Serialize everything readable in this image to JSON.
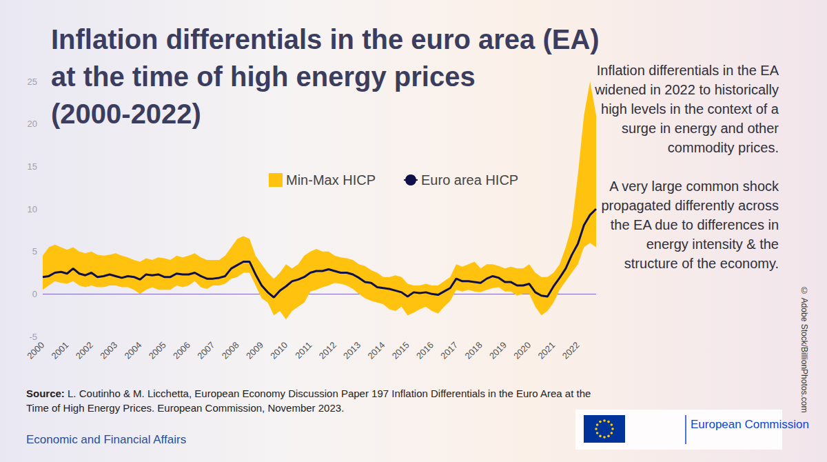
{
  "chart_data": {
    "type": "line",
    "title": "Inflation differentials in the euro area (EA) at the time of high energy prices (2000-2022)",
    "annotations": [
      "Inflation differentials in the EA widened in 2022 to historically high levels in the context of a surge in energy and other commodity prices.",
      "A very large common shock propagated differently across the EA due to differences in energy intensity & the structure of the economy."
    ],
    "source": {
      "label": "Source:",
      "text": "L. Coutinho & M. Licchetta, European Economy Discussion Paper 197 Inflation Differentials in the Euro Area at the Time of High Energy Prices. European Commission, November 2023."
    },
    "footer": "Economic and Financial Affairs",
    "logo": "European Commission",
    "credit": "© Adobe Stock/BillionPhotos.com",
    "legend": "top",
    "categories": [
      "2000",
      null,
      null,
      null,
      "2001",
      null,
      null,
      null,
      "2002",
      null,
      null,
      null,
      "2003",
      null,
      null,
      null,
      "2004",
      null,
      null,
      null,
      "2005",
      null,
      null,
      null,
      "2006",
      null,
      null,
      null,
      "2007",
      null,
      null,
      null,
      "2008",
      null,
      null,
      null,
      "2009",
      null,
      null,
      null,
      "2010",
      null,
      null,
      null,
      "2011",
      null,
      null,
      null,
      "2012",
      null,
      null,
      null,
      "2013",
      null,
      null,
      null,
      "2014",
      null,
      null,
      null,
      "2015",
      null,
      null,
      null,
      "2016",
      null,
      null,
      null,
      "2017",
      null,
      null,
      null,
      "2018",
      null,
      null,
      null,
      "2019",
      null,
      null,
      null,
      "2020",
      null,
      null,
      null,
      "2021",
      null,
      null,
      null,
      "2022",
      null,
      null,
      null
    ],
    "series": [
      {
        "name": "Min-Max HICP",
        "type": "band",
        "color": "#ffc20e",
        "min": [
          0.5,
          1.0,
          1.5,
          1.3,
          1.2,
          1.5,
          1.0,
          0.8,
          1.0,
          0.8,
          0.8,
          1.0,
          1.0,
          0.8,
          0.8,
          0.5,
          0.0,
          0.5,
          0.8,
          0.5,
          0.5,
          0.5,
          1.0,
          0.8,
          1.0,
          1.5,
          0.8,
          0.6,
          1.0,
          1.0,
          1.2,
          1.8,
          2.0,
          2.5,
          2.5,
          1.0,
          -0.5,
          -1.0,
          -2.5,
          -2.0,
          -3.0,
          -2.0,
          -1.5,
          -1.0,
          0.3,
          0.5,
          0.8,
          1.0,
          1.3,
          1.2,
          1.0,
          0.6,
          0.0,
          -0.5,
          -0.8,
          -1.0,
          -1.2,
          -1.8,
          -2.0,
          -1.5,
          -2.5,
          -2.2,
          -1.8,
          -1.5,
          -2.0,
          -2.3,
          -1.5,
          -0.8,
          0.5,
          0.3,
          0.5,
          0.3,
          0.2,
          0.5,
          0.7,
          0.8,
          0.3,
          0.3,
          -0.2,
          0.0,
          0.0,
          -1.5,
          -2.5,
          -2.0,
          -1.0,
          0.5,
          1.5,
          2.5,
          3.5,
          5.5,
          6.0,
          5.5
        ],
        "max": [
          4.5,
          5.5,
          5.8,
          5.5,
          5.2,
          5.5,
          5.0,
          4.8,
          5.0,
          4.6,
          4.5,
          4.6,
          4.8,
          4.5,
          4.3,
          4.0,
          3.8,
          4.2,
          4.0,
          4.3,
          4.2,
          4.0,
          4.5,
          4.3,
          4.5,
          4.8,
          4.3,
          4.0,
          4.0,
          4.0,
          4.5,
          5.5,
          6.5,
          6.8,
          6.5,
          4.5,
          3.5,
          2.5,
          1.8,
          2.5,
          3.5,
          3.0,
          3.5,
          4.5,
          5.0,
          5.3,
          5.0,
          5.0,
          4.5,
          4.3,
          4.2,
          4.0,
          3.5,
          3.3,
          2.8,
          2.5,
          2.0,
          2.0,
          2.2,
          2.0,
          1.2,
          1.0,
          1.0,
          1.2,
          1.0,
          1.0,
          1.5,
          2.0,
          3.5,
          3.2,
          3.5,
          3.8,
          3.0,
          3.5,
          3.5,
          3.3,
          3.0,
          3.2,
          3.0,
          3.0,
          3.5,
          2.5,
          2.0,
          2.0,
          2.5,
          3.5,
          5.5,
          8.0,
          14.0,
          21.0,
          25.0,
          21.0
        ]
      },
      {
        "name": "Euro area HICP",
        "type": "line",
        "color": "#0f0f4a",
        "values": [
          2.0,
          2.1,
          2.5,
          2.6,
          2.4,
          3.0,
          2.4,
          2.2,
          2.5,
          2.0,
          2.1,
          2.3,
          2.1,
          1.9,
          2.1,
          2.0,
          1.7,
          2.3,
          2.2,
          2.3,
          2.0,
          2.0,
          2.4,
          2.3,
          2.3,
          2.5,
          2.1,
          1.8,
          1.8,
          1.9,
          2.1,
          3.0,
          3.4,
          3.8,
          3.8,
          2.3,
          1.0,
          0.2,
          -0.4,
          0.4,
          0.9,
          1.5,
          1.7,
          2.0,
          2.5,
          2.7,
          2.7,
          2.9,
          2.7,
          2.5,
          2.5,
          2.3,
          1.9,
          1.4,
          1.3,
          0.8,
          0.7,
          0.6,
          0.4,
          0.2,
          -0.3,
          0.2,
          0.1,
          0.2,
          0.0,
          -0.1,
          0.3,
          0.7,
          1.8,
          1.5,
          1.5,
          1.4,
          1.3,
          1.8,
          2.1,
          1.9,
          1.4,
          1.4,
          1.0,
          1.0,
          1.2,
          0.2,
          -0.2,
          -0.3,
          0.9,
          1.9,
          3.0,
          4.6,
          5.9,
          8.1,
          9.3,
          10.0
        ]
      }
    ],
    "ylim": [
      -5,
      25
    ],
    "yticks": [
      -5,
      0,
      5,
      10,
      15,
      20,
      25
    ]
  }
}
